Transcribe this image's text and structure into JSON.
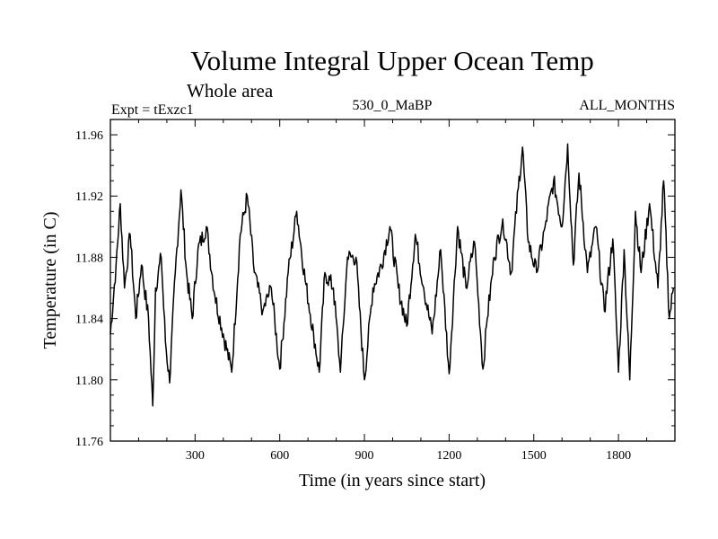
{
  "chart_data": {
    "type": "line",
    "title": "Volume Integral Upper Ocean Temp",
    "subtitle": "Whole area",
    "expt_label": "Expt = tExzc1",
    "period_label": "530_0_MaBP",
    "months_label": "ALL_MONTHS",
    "xlabel": "Time (in years since start)",
    "ylabel": "Temperature (in C)",
    "xlim": [
      0,
      2000
    ],
    "ylim": [
      11.76,
      11.97
    ],
    "x_ticks": [
      300,
      600,
      900,
      1200,
      1500,
      1800
    ],
    "x_tick_labels": [
      "300",
      "600",
      "900",
      "1200",
      "1500",
      "1800"
    ],
    "y_ticks": [
      11.76,
      11.8,
      11.84,
      11.88,
      11.92,
      11.96
    ],
    "y_tick_labels": [
      "11.76",
      "11.80",
      "11.84",
      "11.88",
      "11.92",
      "11.96"
    ],
    "grid": false,
    "series": [
      {
        "name": "Temperature",
        "color": "#000000",
        "x": [
          0,
          20,
          35,
          50,
          70,
          90,
          110,
          135,
          150,
          160,
          180,
          195,
          210,
          230,
          250,
          270,
          290,
          310,
          340,
          370,
          400,
          430,
          460,
          485,
          510,
          540,
          570,
          600,
          630,
          660,
          690,
          720,
          740,
          760,
          790,
          815,
          840,
          870,
          900,
          930,
          960,
          990,
          1020,
          1050,
          1080,
          1110,
          1140,
          1170,
          1200,
          1230,
          1260,
          1290,
          1320,
          1335,
          1360,
          1390,
          1420,
          1445,
          1460,
          1480,
          1510,
          1540,
          1570,
          1600,
          1620,
          1640,
          1660,
          1690,
          1720,
          1750,
          1780,
          1800,
          1820,
          1840,
          1860,
          1880,
          1910,
          1940,
          1960,
          1980,
          1995
        ],
        "values": [
          11.83,
          11.875,
          11.915,
          11.86,
          11.895,
          11.84,
          11.875,
          11.84,
          11.783,
          11.86,
          11.88,
          11.825,
          11.798,
          11.87,
          11.924,
          11.87,
          11.84,
          11.885,
          11.9,
          11.855,
          11.83,
          11.805,
          11.895,
          11.92,
          11.87,
          11.845,
          11.86,
          11.807,
          11.87,
          11.91,
          11.865,
          11.83,
          11.805,
          11.87,
          11.86,
          11.805,
          11.88,
          11.88,
          11.8,
          11.86,
          11.875,
          11.9,
          11.86,
          11.835,
          11.895,
          11.86,
          11.83,
          11.885,
          11.804,
          11.9,
          11.86,
          11.89,
          11.807,
          11.84,
          11.88,
          11.905,
          11.87,
          11.925,
          11.952,
          11.89,
          11.87,
          11.9,
          11.93,
          11.9,
          11.954,
          11.875,
          11.935,
          11.87,
          11.9,
          11.845,
          11.892,
          11.805,
          11.885,
          11.8,
          11.91,
          11.87,
          11.915,
          11.86,
          11.93,
          11.84,
          11.86
        ]
      }
    ]
  }
}
